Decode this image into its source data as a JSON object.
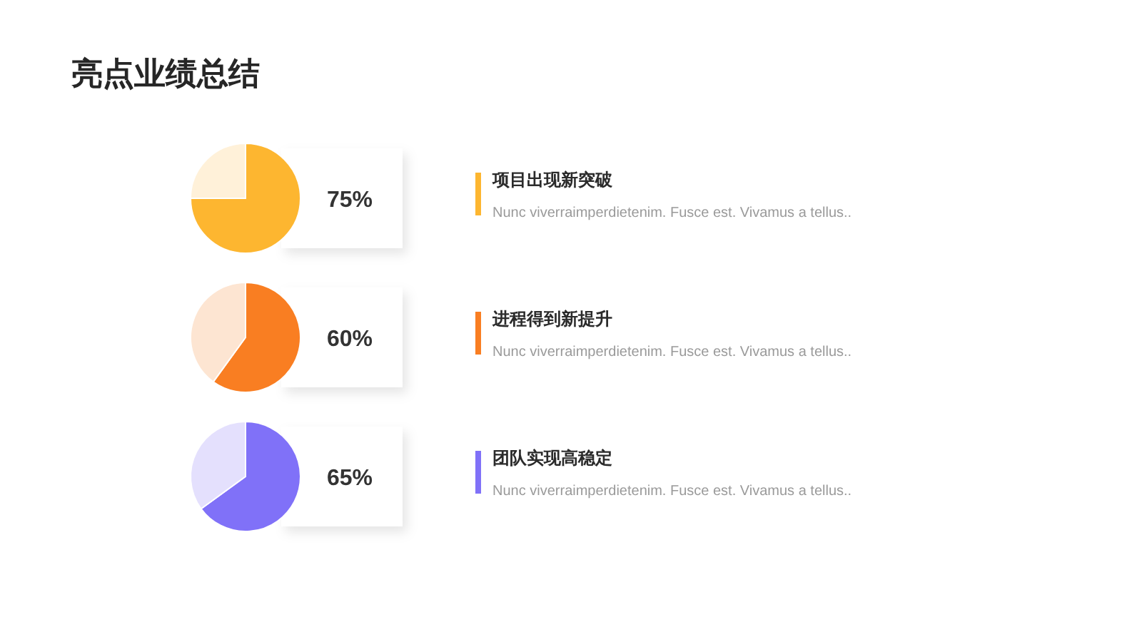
{
  "chart_data": [
    {
      "type": "other",
      "title": "亮点业绩总结"
    },
    {
      "type": "pie",
      "title": "项目出现新突破",
      "categories": [
        null,
        null
      ],
      "values": [
        75,
        25
      ],
      "colors": [
        "#fdb630",
        "#fff1d9"
      ],
      "value_labels": [
        "75%",
        null
      ],
      "annotations": [
        "Nunc viverraimperdietenim. Fusce est. Vivamus a tellus.."
      ]
    },
    {
      "type": "pie",
      "title": "进程得到新提升",
      "categories": [
        null,
        null
      ],
      "values": [
        60,
        40
      ],
      "colors": [
        "#f97e22",
        "#fde5d2"
      ],
      "value_labels": [
        "60%",
        null
      ],
      "annotations": [
        "Nunc viverraimperdietenim. Fusce est. Vivamus a tellus.."
      ]
    },
    {
      "type": "pie",
      "title": "团队实现高稳定",
      "categories": [
        null,
        null
      ],
      "values": [
        65,
        35
      ],
      "colors": [
        "#8071f8",
        "#e4e0fd"
      ],
      "value_labels": [
        "65%",
        null
      ],
      "annotations": [
        "Nunc viverraimperdietenim. Fusce est. Vivamus a tellus.."
      ]
    }
  ]
}
